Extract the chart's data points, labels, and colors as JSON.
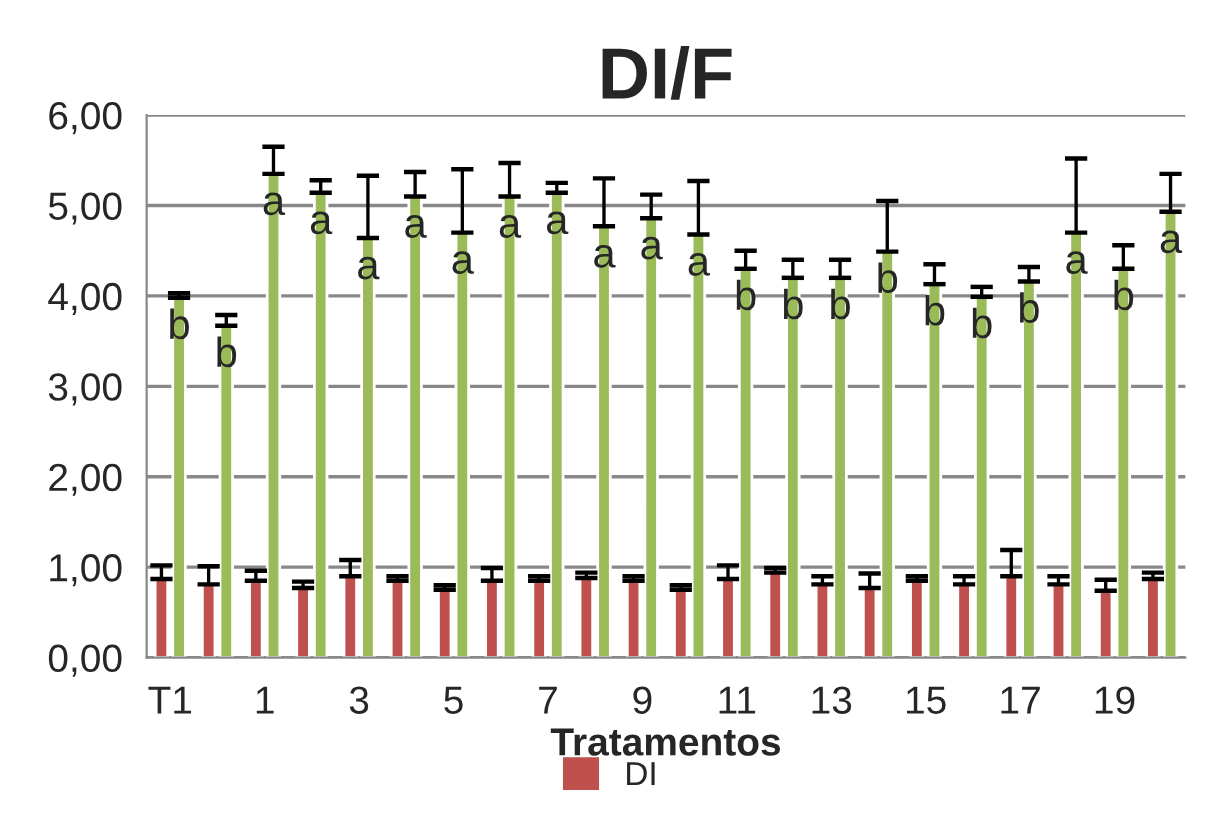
{
  "chart_data": {
    "type": "bar",
    "title": "DI/F",
    "xlabel": "Tratamentos",
    "categories": [
      "T1",
      null,
      "1",
      null,
      "3",
      null,
      "5",
      null,
      "7",
      null,
      "9",
      null,
      "11",
      null,
      "13",
      null,
      "15",
      null,
      "17",
      null,
      "19",
      null
    ],
    "series": [
      {
        "name": "DI",
        "color": "#c0504d",
        "values": [
          0.87,
          0.81,
          0.85,
          0.77,
          0.9,
          0.85,
          0.75,
          0.85,
          0.85,
          0.88,
          0.85,
          0.75,
          0.87,
          0.94,
          0.81,
          0.77,
          0.85,
          0.81,
          0.9,
          0.81,
          0.74,
          0.87
        ],
        "errors": [
          [
            0.87,
            1.02
          ],
          [
            0.81,
            1.01
          ],
          [
            0.85,
            0.96
          ],
          [
            0.77,
            0.84
          ],
          [
            0.9,
            1.08
          ],
          [
            0.85,
            0.9
          ],
          [
            0.75,
            0.8
          ],
          [
            0.85,
            0.99
          ],
          [
            0.85,
            0.9
          ],
          [
            0.88,
            0.94
          ],
          [
            0.85,
            0.9
          ],
          [
            0.75,
            0.8
          ],
          [
            0.87,
            1.02
          ],
          [
            0.94,
            0.99
          ],
          [
            0.81,
            0.9
          ],
          [
            0.77,
            0.93
          ],
          [
            0.85,
            0.9
          ],
          [
            0.81,
            0.9
          ],
          [
            0.9,
            1.19
          ],
          [
            0.81,
            0.9
          ],
          [
            0.74,
            0.86
          ],
          [
            0.87,
            0.94
          ]
        ]
      },
      {
        "color": "#9bbb59",
        "values": [
          3.98,
          3.67,
          5.35,
          5.14,
          4.64,
          5.1,
          4.7,
          5.1,
          5.14,
          4.77,
          4.86,
          4.68,
          4.3,
          4.2,
          4.2,
          4.49,
          4.13,
          3.99,
          4.16,
          4.7,
          4.3,
          4.93
        ],
        "errors": [
          [
            3.98,
            4.03
          ],
          [
            3.67,
            3.79
          ],
          [
            5.35,
            5.65
          ],
          [
            5.14,
            5.28
          ],
          [
            4.64,
            5.33
          ],
          [
            5.1,
            5.37
          ],
          [
            4.7,
            5.4
          ],
          [
            5.1,
            5.47
          ],
          [
            5.14,
            5.25
          ],
          [
            4.77,
            5.3
          ],
          [
            4.86,
            5.12
          ],
          [
            4.68,
            5.27
          ],
          [
            4.3,
            4.5
          ],
          [
            4.2,
            4.4
          ],
          [
            4.2,
            4.4
          ],
          [
            4.49,
            5.05
          ],
          [
            4.13,
            4.35
          ],
          [
            3.99,
            4.1
          ],
          [
            4.16,
            4.32
          ],
          [
            4.7,
            5.52
          ],
          [
            4.3,
            4.56
          ],
          [
            4.93,
            5.35
          ]
        ],
        "value_labels": [
          "b",
          "b",
          "a",
          "a",
          "a",
          "a",
          "a",
          "a",
          "a",
          "a",
          "a",
          "a",
          "b",
          "b",
          "b",
          "b",
          "b",
          "b",
          "b",
          "a",
          "b",
          "a"
        ]
      }
    ],
    "ylim": [
      0,
      6
    ],
    "yticks": [
      {
        "value": 0,
        "label": "0,00"
      },
      {
        "value": 1,
        "label": "1,00"
      },
      {
        "value": 2,
        "label": "2,00"
      },
      {
        "value": 3,
        "label": "3,00"
      },
      {
        "value": 4,
        "label": "4,00"
      },
      {
        "value": 5,
        "label": "5,00"
      },
      {
        "value": 6,
        "label": "6,00"
      }
    ],
    "grid": "y",
    "legend": "bottom"
  }
}
